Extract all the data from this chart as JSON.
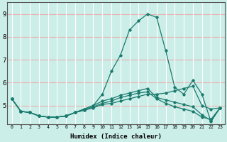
{
  "xlabel": "Humidex (Indice chaleur)",
  "x": [
    0,
    1,
    2,
    3,
    4,
    5,
    6,
    7,
    8,
    9,
    10,
    11,
    12,
    13,
    14,
    15,
    16,
    17,
    18,
    19,
    20,
    21,
    22,
    23
  ],
  "lines": [
    [
      5.3,
      4.75,
      4.7,
      4.55,
      4.5,
      4.5,
      4.55,
      4.7,
      4.8,
      4.9,
      5.05,
      5.1,
      5.2,
      5.3,
      5.4,
      5.5,
      5.5,
      5.55,
      5.65,
      5.75,
      5.85,
      5.0,
      4.85,
      4.9
    ],
    [
      5.3,
      4.75,
      4.7,
      4.55,
      4.5,
      4.5,
      4.55,
      4.7,
      4.85,
      5.0,
      5.2,
      5.3,
      5.45,
      5.55,
      5.65,
      5.75,
      5.35,
      5.25,
      5.15,
      5.05,
      4.95,
      4.6,
      4.35,
      4.9
    ],
    [
      5.3,
      4.75,
      4.7,
      4.55,
      4.5,
      4.5,
      4.55,
      4.7,
      4.85,
      5.0,
      5.5,
      6.5,
      7.2,
      8.3,
      8.7,
      9.0,
      8.85,
      7.4,
      5.8,
      5.5,
      6.1,
      5.5,
      4.3,
      4.9
    ],
    [
      5.3,
      4.75,
      4.7,
      4.55,
      4.5,
      4.5,
      4.55,
      4.7,
      4.8,
      4.95,
      5.1,
      5.2,
      5.35,
      5.45,
      5.55,
      5.6,
      5.3,
      5.1,
      4.95,
      4.85,
      4.75,
      4.5,
      4.4,
      4.9
    ]
  ],
  "line_color": "#1a7a6e",
  "bg_color": "#cceee8",
  "hgrid_color": "#e8b0b0",
  "vgrid_color": "#ffffff",
  "ylim": [
    4.2,
    9.5
  ],
  "yticks": [
    5,
    6,
    7,
    8,
    9
  ],
  "xlim": [
    -0.5,
    23.5
  ]
}
